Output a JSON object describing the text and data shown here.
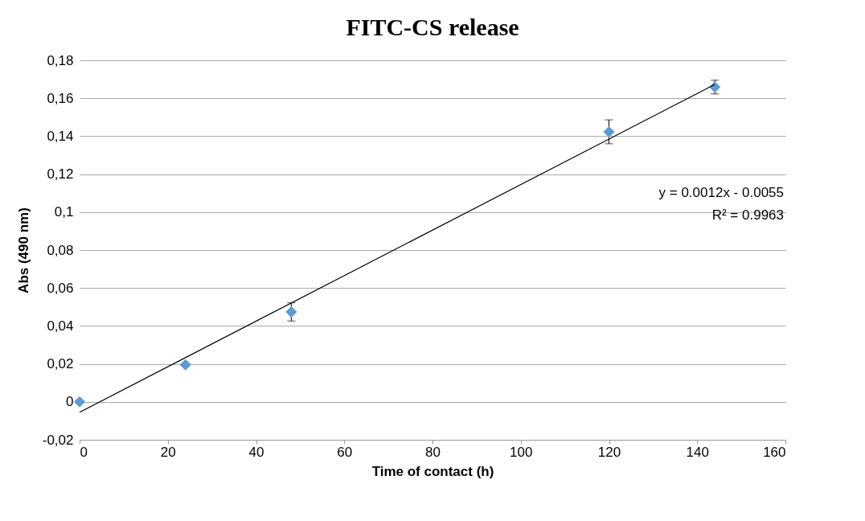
{
  "chart_data": {
    "type": "scatter",
    "title": "FITC-CS release",
    "xlabel": "Time of contact (h)",
    "ylabel": "Abs  (490 nm)",
    "xlim": [
      0,
      160
    ],
    "xticks": [
      0,
      20,
      40,
      60,
      80,
      100,
      120,
      140,
      160
    ],
    "ylim": [
      -0.02,
      0.18
    ],
    "yticks": [
      {
        "value": -0.02,
        "label": "-0,02"
      },
      {
        "value": 0,
        "label": "0"
      },
      {
        "value": 0.02,
        "label": "0,02"
      },
      {
        "value": 0.04,
        "label": "0,04"
      },
      {
        "value": 0.06,
        "label": "0,06"
      },
      {
        "value": 0.08,
        "label": "0,08"
      },
      {
        "value": 0.1,
        "label": "0,1"
      },
      {
        "value": 0.12,
        "label": "0,12"
      },
      {
        "value": 0.14,
        "label": "0,14"
      },
      {
        "value": 0.16,
        "label": "0,16"
      },
      {
        "value": 0.18,
        "label": "0,18"
      }
    ],
    "grid": "y",
    "annotations": [
      "y = 0.0012x - 0.0055",
      "R² = 0.9963"
    ],
    "series": [
      {
        "color": "#5b9bd5",
        "marker": "diamond",
        "x": [
          0,
          24,
          48,
          120,
          144
        ],
        "values": [
          0,
          0.0195,
          0.0474,
          0.1423,
          0.1659
        ],
        "errors": [
          null,
          null,
          0.0048,
          0.0063,
          0.0036
        ]
      },
      {
        "type": "line",
        "color": "#000000",
        "x": [
          0,
          144
        ],
        "values": [
          -0.0055,
          0.1673
        ]
      }
    ]
  }
}
